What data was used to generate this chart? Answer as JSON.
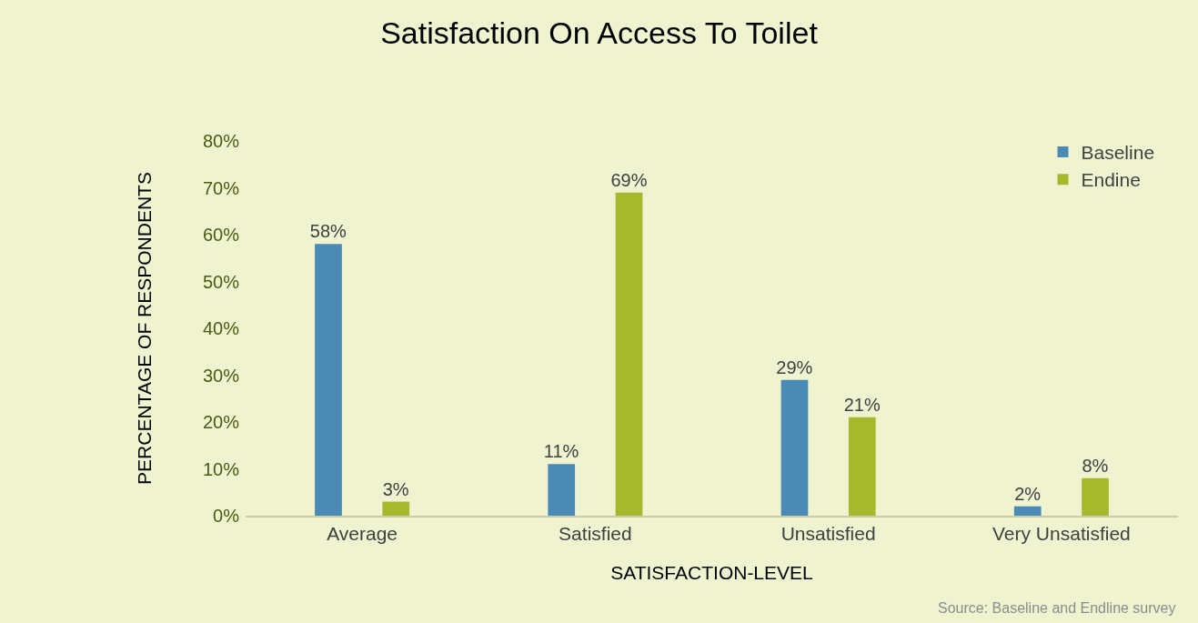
{
  "chart_data": {
    "type": "bar",
    "title": "Satisfaction On Access To Toilet",
    "xlabel": "SATISFACTION-LEVEL",
    "ylabel": "PERCENTAGE OF RESPONDENTS",
    "categories": [
      "Average",
      "Satisfied",
      "Unsatisfied",
      "Very Unsatisfied"
    ],
    "series": [
      {
        "name": "Baseline",
        "color": "#4a8ab5",
        "values": [
          58,
          11,
          29,
          2
        ],
        "value_labels": [
          "58%",
          "11%",
          "29%",
          "2%"
        ]
      },
      {
        "name": "Endine",
        "color": "#a6b82c",
        "values": [
          3,
          69,
          21,
          8
        ],
        "value_labels": [
          "3%",
          "69%",
          "21%",
          "8%"
        ]
      }
    ],
    "ylim": [
      0,
      80
    ],
    "yticks": [
      {
        "value": 0,
        "label": "0%"
      },
      {
        "value": 10,
        "label": "10%"
      },
      {
        "value": 20,
        "label": "20%"
      },
      {
        "value": 30,
        "label": "30%"
      },
      {
        "value": 40,
        "label": "40%"
      },
      {
        "value": 50,
        "label": "50%"
      },
      {
        "value": 60,
        "label": "60%"
      },
      {
        "value": 70,
        "label": "70%"
      },
      {
        "value": 80,
        "label": "80%"
      }
    ],
    "grid": false,
    "legend": "top right",
    "annotations": [
      "Source: Baseline and Endline survey"
    ]
  }
}
